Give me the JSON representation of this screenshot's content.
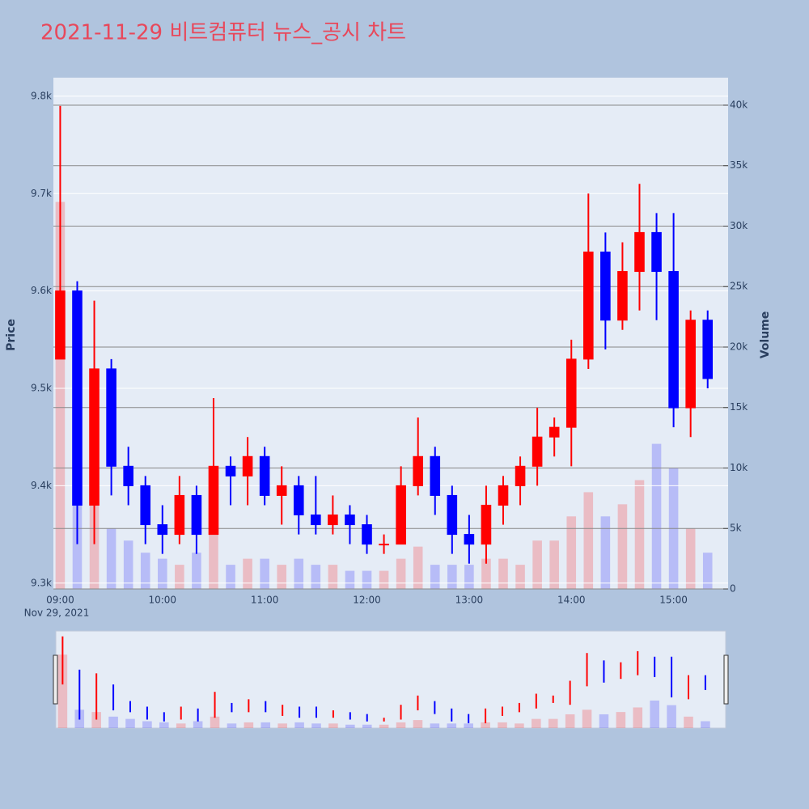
{
  "chart_data": {
    "type": "candlestick",
    "title": "2021-11-29 비트컴퓨터 뉴스_공시 차트",
    "y_label": "Price",
    "y2_label": "Volume",
    "date_label": "Nov 29, 2021",
    "increasing_color": "#ff0000",
    "decreasing_color": "#0000ff",
    "grid": true,
    "x": [
      "09:00",
      "09:10",
      "09:20",
      "09:30",
      "09:40",
      "09:50",
      "10:00",
      "10:10",
      "10:20",
      "10:30",
      "10:40",
      "10:50",
      "11:00",
      "11:10",
      "11:20",
      "11:30",
      "11:40",
      "11:50",
      "12:00",
      "12:10",
      "12:20",
      "12:30",
      "12:40",
      "12:50",
      "13:00",
      "13:10",
      "13:20",
      "13:30",
      "13:40",
      "13:50",
      "14:00",
      "14:10",
      "14:20",
      "14:30",
      "14:40",
      "14:50",
      "15:00",
      "15:10",
      "15:20"
    ],
    "open": [
      9530,
      9600,
      9380,
      9520,
      9420,
      9400,
      9360,
      9350,
      9390,
      9350,
      9420,
      9410,
      9430,
      9390,
      9400,
      9370,
      9360,
      9370,
      9360,
      9340,
      9340,
      9400,
      9430,
      9390,
      9350,
      9340,
      9380,
      9400,
      9420,
      9450,
      9460,
      9530,
      9640,
      9570,
      9620,
      9660,
      9620,
      9480,
      9570
    ],
    "high": [
      9790,
      9610,
      9590,
      9530,
      9440,
      9410,
      9380,
      9410,
      9400,
      9490,
      9430,
      9450,
      9440,
      9420,
      9410,
      9410,
      9390,
      9380,
      9370,
      9350,
      9420,
      9470,
      9440,
      9400,
      9370,
      9400,
      9410,
      9430,
      9480,
      9470,
      9550,
      9700,
      9660,
      9650,
      9710,
      9680,
      9680,
      9580,
      9580
    ],
    "low": [
      9530,
      9340,
      9340,
      9390,
      9380,
      9340,
      9330,
      9340,
      9330,
      9350,
      9380,
      9380,
      9380,
      9360,
      9350,
      9350,
      9350,
      9340,
      9330,
      9330,
      9340,
      9390,
      9370,
      9330,
      9320,
      9320,
      9360,
      9380,
      9400,
      9430,
      9420,
      9520,
      9540,
      9560,
      9580,
      9570,
      9460,
      9450,
      9500
    ],
    "close": [
      9600,
      9380,
      9520,
      9420,
      9400,
      9360,
      9350,
      9390,
      9350,
      9420,
      9410,
      9430,
      9390,
      9400,
      9370,
      9360,
      9370,
      9360,
      9340,
      9340,
      9400,
      9430,
      9390,
      9350,
      9340,
      9380,
      9400,
      9420,
      9450,
      9460,
      9530,
      9640,
      9570,
      9620,
      9660,
      9620,
      9480,
      9570,
      9510
    ],
    "volume": [
      32000,
      8000,
      7000,
      5000,
      4000,
      3000,
      2500,
      2000,
      3000,
      5000,
      2000,
      2500,
      2500,
      2000,
      2500,
      2000,
      2000,
      1500,
      1500,
      1500,
      2500,
      3500,
      2000,
      2000,
      2000,
      2500,
      2500,
      2000,
      4000,
      4000,
      6000,
      8000,
      6000,
      7000,
      9000,
      12000,
      10000,
      5000,
      3000
    ],
    "xlim": [
      "08:56",
      "15:32"
    ],
    "xticks": [
      "09:00",
      "10:00",
      "11:00",
      "12:00",
      "13:00",
      "14:00",
      "15:00"
    ],
    "ylim": [
      9294,
      9819
    ],
    "yticks": [
      {
        "value": 9300,
        "label": "9.3k"
      },
      {
        "value": 9400,
        "label": "9.4k"
      },
      {
        "value": 9500,
        "label": "9.5k"
      },
      {
        "value": 9600,
        "label": "9.6k"
      },
      {
        "value": 9700,
        "label": "9.7k"
      },
      {
        "value": 9800,
        "label": "9.8k"
      }
    ],
    "y2lim": [
      0,
      42274
    ],
    "y2ticks": [
      0,
      {
        "value": 5000,
        "label": "5k"
      },
      {
        "value": 10000,
        "label": "10k"
      },
      {
        "value": 15000,
        "label": "15k"
      },
      {
        "value": 20000,
        "label": "20k"
      },
      {
        "value": 25000,
        "label": "25k"
      },
      {
        "value": 30000,
        "label": "30k"
      },
      {
        "value": 35000,
        "label": "35k"
      },
      {
        "value": 40000,
        "label": "40k"
      }
    ]
  }
}
